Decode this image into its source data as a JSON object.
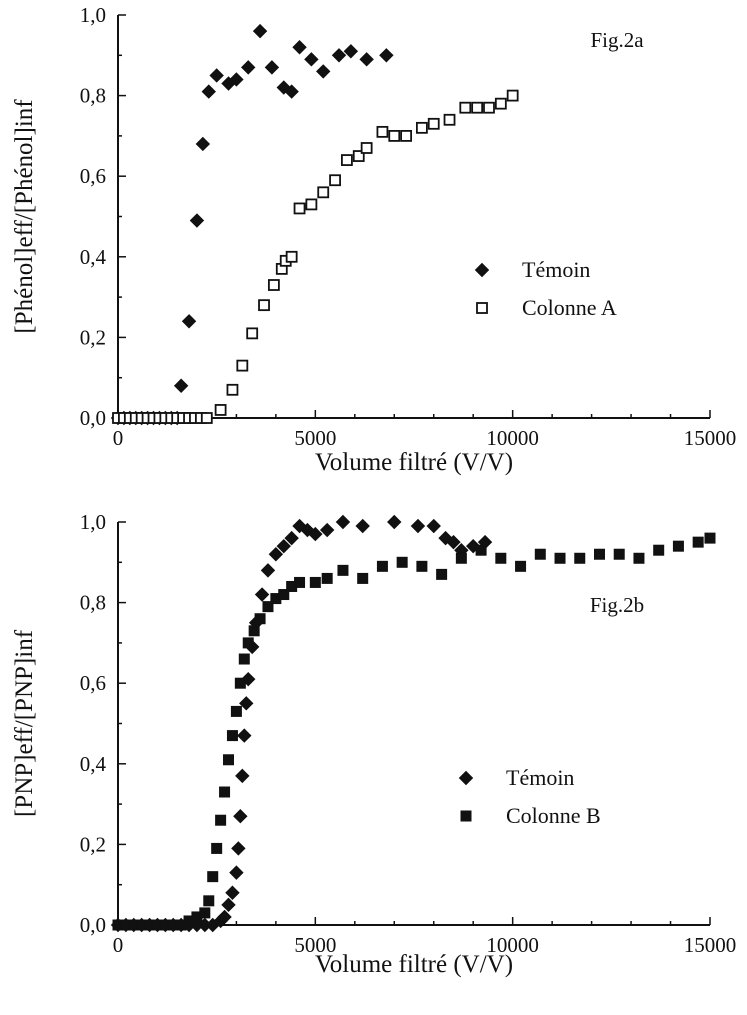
{
  "chart_data": [
    {
      "type": "scatter",
      "annotation": "Fig.2a",
      "xlabel": "Volume filtré (V/V)",
      "ylabel": "[Phénol]eff/[Phénol]inf",
      "xlim": [
        0,
        15000
      ],
      "ylim": [
        0,
        1
      ],
      "x_ticks": [
        "0",
        "5000",
        "10000",
        "15000"
      ],
      "y_ticks": [
        "0,0",
        "0,2",
        "0,4",
        "0,6",
        "0,8",
        "1,0"
      ],
      "legend_position": "center-right",
      "series": [
        {
          "name": "Témoin",
          "marker": "diamond-filled",
          "points": [
            [
              0,
              0.0
            ],
            [
              150,
              0.0
            ],
            [
              300,
              0.0
            ],
            [
              450,
              0.0
            ],
            [
              600,
              0.0
            ],
            [
              750,
              0.0
            ],
            [
              900,
              0.0
            ],
            [
              1050,
              0.0
            ],
            [
              1200,
              0.0
            ],
            [
              1350,
              0.0
            ],
            [
              1500,
              0.0
            ],
            [
              1600,
              0.08
            ],
            [
              1800,
              0.24
            ],
            [
              2000,
              0.49
            ],
            [
              2150,
              0.68
            ],
            [
              2300,
              0.81
            ],
            [
              2500,
              0.85
            ],
            [
              2800,
              0.83
            ],
            [
              3000,
              0.84
            ],
            [
              3300,
              0.87
            ],
            [
              3600,
              0.96
            ],
            [
              3900,
              0.87
            ],
            [
              4200,
              0.82
            ],
            [
              4400,
              0.81
            ],
            [
              4600,
              0.92
            ],
            [
              4900,
              0.89
            ],
            [
              5200,
              0.86
            ],
            [
              5600,
              0.9
            ],
            [
              5900,
              0.91
            ],
            [
              6300,
              0.89
            ],
            [
              6800,
              0.9
            ]
          ]
        },
        {
          "name": "Colonne A",
          "marker": "square-open",
          "points": [
            [
              0,
              0.0
            ],
            [
              150,
              0.0
            ],
            [
              300,
              0.0
            ],
            [
              450,
              0.0
            ],
            [
              600,
              0.0
            ],
            [
              750,
              0.0
            ],
            [
              900,
              0.0
            ],
            [
              1050,
              0.0
            ],
            [
              1200,
              0.0
            ],
            [
              1350,
              0.0
            ],
            [
              1500,
              0.0
            ],
            [
              1650,
              0.0
            ],
            [
              1800,
              0.0
            ],
            [
              1950,
              0.0
            ],
            [
              2100,
              0.0
            ],
            [
              2250,
              0.0
            ],
            [
              2600,
              0.02
            ],
            [
              2900,
              0.07
            ],
            [
              3150,
              0.13
            ],
            [
              3400,
              0.21
            ],
            [
              3700,
              0.28
            ],
            [
              3950,
              0.33
            ],
            [
              4150,
              0.37
            ],
            [
              4250,
              0.39
            ],
            [
              4400,
              0.4
            ],
            [
              4600,
              0.52
            ],
            [
              4900,
              0.53
            ],
            [
              5200,
              0.56
            ],
            [
              5500,
              0.59
            ],
            [
              5800,
              0.64
            ],
            [
              6100,
              0.65
            ],
            [
              6300,
              0.67
            ],
            [
              6700,
              0.71
            ],
            [
              7000,
              0.7
            ],
            [
              7300,
              0.7
            ],
            [
              7700,
              0.72
            ],
            [
              8000,
              0.73
            ],
            [
              8400,
              0.74
            ],
            [
              8800,
              0.77
            ],
            [
              9100,
              0.77
            ],
            [
              9400,
              0.77
            ],
            [
              9700,
              0.78
            ],
            [
              10000,
              0.8
            ]
          ]
        }
      ]
    },
    {
      "type": "scatter",
      "annotation": "Fig.2b",
      "xlabel": "Volume filtré (V/V)",
      "ylabel": "[PNP]eff/[PNP]inf",
      "xlim": [
        0,
        15000
      ],
      "ylim": [
        0,
        1
      ],
      "x_ticks": [
        "0",
        "5000",
        "10000",
        "15000"
      ],
      "y_ticks": [
        "0,0",
        "0,2",
        "0,4",
        "0,6",
        "0,8",
        "1,0"
      ],
      "legend_position": "center-right",
      "series": [
        {
          "name": "Témoin",
          "marker": "diamond-filled",
          "points": [
            [
              0,
              0.0
            ],
            [
              200,
              0.0
            ],
            [
              400,
              0.0
            ],
            [
              600,
              0.0
            ],
            [
              800,
              0.0
            ],
            [
              1000,
              0.0
            ],
            [
              1200,
              0.0
            ],
            [
              1400,
              0.0
            ],
            [
              1600,
              0.0
            ],
            [
              1800,
              0.0
            ],
            [
              2000,
              0.0
            ],
            [
              2200,
              0.0
            ],
            [
              2400,
              0.0
            ],
            [
              2600,
              0.01
            ],
            [
              2700,
              0.02
            ],
            [
              2800,
              0.05
            ],
            [
              2900,
              0.08
            ],
            [
              3000,
              0.13
            ],
            [
              3050,
              0.19
            ],
            [
              3100,
              0.27
            ],
            [
              3150,
              0.37
            ],
            [
              3200,
              0.47
            ],
            [
              3250,
              0.55
            ],
            [
              3300,
              0.61
            ],
            [
              3400,
              0.69
            ],
            [
              3500,
              0.75
            ],
            [
              3650,
              0.82
            ],
            [
              3800,
              0.88
            ],
            [
              4000,
              0.92
            ],
            [
              4200,
              0.94
            ],
            [
              4400,
              0.96
            ],
            [
              4600,
              0.99
            ],
            [
              4800,
              0.98
            ],
            [
              5000,
              0.97
            ],
            [
              5300,
              0.98
            ],
            [
              5700,
              1.0
            ],
            [
              6200,
              0.99
            ],
            [
              7000,
              1.0
            ],
            [
              7600,
              0.99
            ],
            [
              8000,
              0.99
            ],
            [
              8300,
              0.96
            ],
            [
              8500,
              0.95
            ],
            [
              8700,
              0.93
            ],
            [
              9000,
              0.94
            ],
            [
              9300,
              0.95
            ]
          ]
        },
        {
          "name": "Colonne B",
          "marker": "square-filled",
          "points": [
            [
              0,
              0.0
            ],
            [
              200,
              0.0
            ],
            [
              400,
              0.0
            ],
            [
              600,
              0.0
            ],
            [
              800,
              0.0
            ],
            [
              1000,
              0.0
            ],
            [
              1200,
              0.0
            ],
            [
              1400,
              0.0
            ],
            [
              1600,
              0.0
            ],
            [
              1800,
              0.01
            ],
            [
              2000,
              0.02
            ],
            [
              2200,
              0.03
            ],
            [
              2300,
              0.06
            ],
            [
              2400,
              0.12
            ],
            [
              2500,
              0.19
            ],
            [
              2600,
              0.26
            ],
            [
              2700,
              0.33
            ],
            [
              2800,
              0.41
            ],
            [
              2900,
              0.47
            ],
            [
              3000,
              0.53
            ],
            [
              3100,
              0.6
            ],
            [
              3200,
              0.66
            ],
            [
              3300,
              0.7
            ],
            [
              3450,
              0.73
            ],
            [
              3600,
              0.76
            ],
            [
              3800,
              0.79
            ],
            [
              4000,
              0.81
            ],
            [
              4200,
              0.82
            ],
            [
              4400,
              0.84
            ],
            [
              4600,
              0.85
            ],
            [
              5000,
              0.85
            ],
            [
              5300,
              0.86
            ],
            [
              5700,
              0.88
            ],
            [
              6200,
              0.86
            ],
            [
              6700,
              0.89
            ],
            [
              7200,
              0.9
            ],
            [
              7700,
              0.89
            ],
            [
              8200,
              0.87
            ],
            [
              8700,
              0.91
            ],
            [
              9200,
              0.93
            ],
            [
              9700,
              0.91
            ],
            [
              10200,
              0.89
            ],
            [
              10700,
              0.92
            ],
            [
              11200,
              0.91
            ],
            [
              11700,
              0.91
            ],
            [
              12200,
              0.92
            ],
            [
              12700,
              0.92
            ],
            [
              13200,
              0.91
            ],
            [
              13700,
              0.93
            ],
            [
              14200,
              0.94
            ],
            [
              14700,
              0.95
            ],
            [
              15000,
              0.96
            ]
          ]
        }
      ]
    }
  ]
}
